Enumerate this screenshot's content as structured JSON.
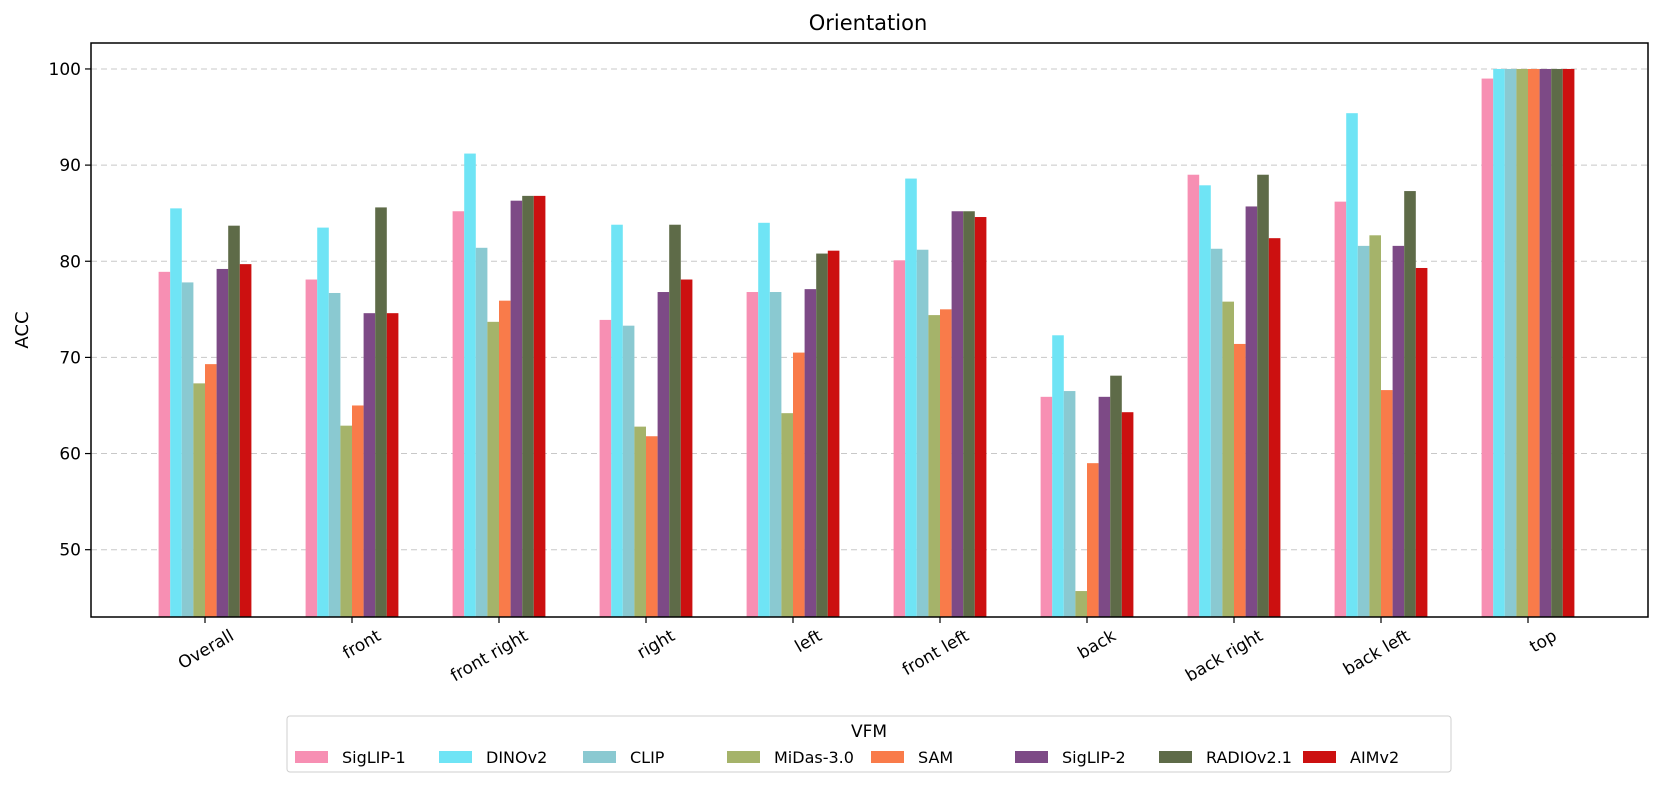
{
  "chart_data": {
    "type": "bar",
    "title": "Orientation",
    "xlabel": "",
    "ylabel": "ACC",
    "ylim": [
      43,
      102.7
    ],
    "yticks": [
      50,
      60,
      70,
      80,
      90,
      100
    ],
    "grid": "y-dashed",
    "categories": [
      "Overall",
      "front",
      "front right",
      "right",
      "left",
      "front left",
      "back",
      "back right",
      "back left",
      "top"
    ],
    "legend": {
      "title": "VFM",
      "placement": "bottom-center"
    },
    "series": [
      {
        "name": "SigLIP-1",
        "color": "#f78fb3",
        "values": [
          78.9,
          78.1,
          85.2,
          73.9,
          76.8,
          80.1,
          65.9,
          89.0,
          86.2,
          99.0
        ]
      },
      {
        "name": "DINOv2",
        "color": "#6fe4f5",
        "values": [
          85.5,
          83.5,
          91.2,
          83.8,
          84.0,
          88.6,
          72.3,
          87.9,
          95.4,
          100.0
        ]
      },
      {
        "name": "CLIP",
        "color": "#8ac9d1",
        "values": [
          77.8,
          76.7,
          81.4,
          73.3,
          76.8,
          81.2,
          66.5,
          81.3,
          81.6,
          100.0
        ]
      },
      {
        "name": "MiDas-3.0",
        "color": "#a5b36a",
        "values": [
          67.3,
          62.9,
          73.7,
          62.8,
          64.2,
          74.4,
          45.7,
          75.8,
          82.7,
          100.0
        ]
      },
      {
        "name": "SAM",
        "color": "#f97b4a",
        "values": [
          69.3,
          65.0,
          75.9,
          61.8,
          70.5,
          75.0,
          59.0,
          71.4,
          66.6,
          100.0
        ]
      },
      {
        "name": "SigLIP-2",
        "color": "#7d4a86",
        "values": [
          79.2,
          74.6,
          86.3,
          76.8,
          77.1,
          85.2,
          65.9,
          85.7,
          81.6,
          100.0
        ]
      },
      {
        "name": "RADIOv2.1",
        "color": "#5e6b48",
        "values": [
          83.7,
          85.6,
          86.8,
          83.8,
          80.8,
          85.2,
          68.1,
          89.0,
          87.3,
          100.0
        ]
      },
      {
        "name": "AIMv2",
        "color": "#cc1010",
        "values": [
          79.7,
          74.6,
          86.8,
          78.1,
          81.1,
          84.6,
          64.3,
          82.4,
          79.3,
          100.0
        ]
      }
    ]
  }
}
